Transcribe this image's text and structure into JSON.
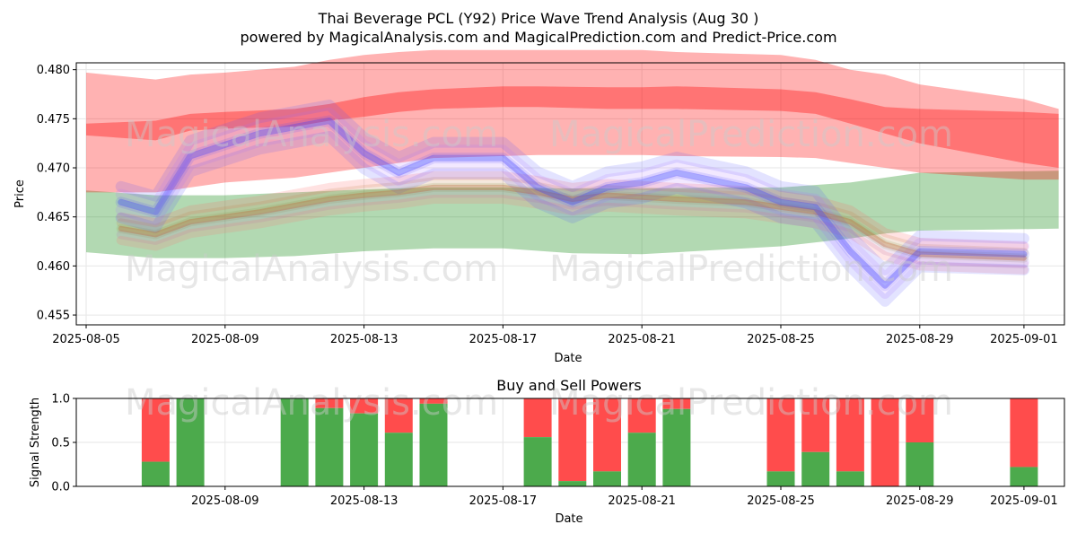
{
  "title": "Thai Beverage PCL (Y92) Price Wave Trend Analysis (Aug 30 )",
  "subtitle": "powered by MagicalAnalysis.com and MagicalPrediction.com and Predict-Price.com",
  "watermarks": [
    "MagicalAnalysis.com",
    "MagicalPrediction.com"
  ],
  "colors": {
    "red_band": "#ff0000",
    "green_band": "#008000",
    "blue_band": "#0000ff",
    "buy": "#4caa4c",
    "sell": "#ff4c4c"
  },
  "chart_data": [
    {
      "type": "area",
      "ylabel": "Price",
      "xlabel": "Date",
      "ylim": [
        0.454,
        0.4807
      ],
      "xlim": [
        "2025-08-05",
        "2025-09-02"
      ],
      "grid": true,
      "y_ticks": [
        "0.455",
        "0.460",
        "0.465",
        "0.470",
        "0.475",
        "0.480"
      ],
      "x_ticks": [
        "2025-08-05",
        "2025-08-09",
        "2025-08-13",
        "2025-08-17",
        "2025-08-21",
        "2025-08-25",
        "2025-08-29",
        "2025-09-01"
      ],
      "series": [
        {
          "color": "red",
          "x": [
            "2025-08-05",
            "2025-08-07",
            "2025-08-08",
            "2025-08-09",
            "2025-08-11",
            "2025-08-12",
            "2025-08-13",
            "2025-08-14",
            "2025-08-15",
            "2025-08-17",
            "2025-08-18",
            "2025-08-20",
            "2025-08-21",
            "2025-08-22",
            "2025-08-25",
            "2025-08-26",
            "2025-08-27",
            "2025-08-28",
            "2025-08-29",
            "2025-09-01",
            "2025-09-02"
          ],
          "outer_upper": [
            0.4797,
            0.479,
            0.4795,
            0.4797,
            0.4803,
            0.481,
            0.4815,
            0.4818,
            0.482,
            0.482,
            0.482,
            0.482,
            0.482,
            0.4818,
            0.4815,
            0.481,
            0.48,
            0.4795,
            0.4785,
            0.477,
            0.476
          ],
          "outer_lower": [
            0.4675,
            0.4675,
            0.468,
            0.4685,
            0.469,
            0.4695,
            0.47,
            0.4705,
            0.471,
            0.4712,
            0.4713,
            0.4713,
            0.4713,
            0.4712,
            0.4711,
            0.471,
            0.4705,
            0.47,
            0.4695,
            0.4688,
            0.4688
          ],
          "inner_upper": [
            0.4745,
            0.4748,
            0.4755,
            0.4757,
            0.476,
            0.4765,
            0.4772,
            0.4777,
            0.478,
            0.4783,
            0.4783,
            0.4782,
            0.4782,
            0.4783,
            0.478,
            0.4777,
            0.477,
            0.4762,
            0.476,
            0.4757,
            0.4755
          ],
          "inner_lower": [
            0.4733,
            0.4728,
            0.4738,
            0.474,
            0.4742,
            0.4748,
            0.4752,
            0.4757,
            0.476,
            0.4762,
            0.4762,
            0.476,
            0.476,
            0.476,
            0.4758,
            0.4755,
            0.4745,
            0.4735,
            0.4725,
            0.4705,
            0.47
          ]
        },
        {
          "color": "green",
          "x": [
            "2025-08-05",
            "2025-08-07",
            "2025-08-09",
            "2025-08-11",
            "2025-08-13",
            "2025-08-15",
            "2025-08-17",
            "2025-08-19",
            "2025-08-21",
            "2025-08-23",
            "2025-08-25",
            "2025-08-27",
            "2025-08-28",
            "2025-08-29",
            "2025-09-02"
          ],
          "outer_upper": [
            0.4677,
            0.4672,
            0.4672,
            0.4675,
            0.4678,
            0.468,
            0.468,
            0.4679,
            0.4679,
            0.468,
            0.468,
            0.4685,
            0.469,
            0.4695,
            0.4697
          ],
          "outer_lower": [
            0.4614,
            0.4608,
            0.4608,
            0.461,
            0.4615,
            0.4618,
            0.4618,
            0.4613,
            0.4612,
            0.4616,
            0.462,
            0.4628,
            0.4633,
            0.4636,
            0.4638
          ]
        },
        {
          "color": "blue",
          "x": [
            "2025-08-06",
            "2025-08-07",
            "2025-08-08",
            "2025-08-10",
            "2025-08-12",
            "2025-08-13",
            "2025-08-14",
            "2025-08-15",
            "2025-08-17",
            "2025-08-18",
            "2025-08-19",
            "2025-08-20",
            "2025-08-21",
            "2025-08-22",
            "2025-08-24",
            "2025-08-25",
            "2025-08-26",
            "2025-08-27",
            "2025-08-28",
            "2025-08-29",
            "2025-09-01"
          ],
          "y": [
            0.4665,
            0.4655,
            0.4712,
            0.4735,
            0.4748,
            0.4715,
            0.4695,
            0.471,
            0.471,
            0.468,
            0.4665,
            0.468,
            0.4685,
            0.4695,
            0.468,
            0.4665,
            0.466,
            0.4615,
            0.458,
            0.4615,
            0.4612
          ]
        },
        {
          "color": "mixed",
          "x": [
            "2025-08-06",
            "2025-08-07",
            "2025-08-08",
            "2025-08-10",
            "2025-08-12",
            "2025-08-13",
            "2025-08-14",
            "2025-08-15",
            "2025-08-17",
            "2025-08-18",
            "2025-08-19",
            "2025-08-20",
            "2025-08-21",
            "2025-08-22",
            "2025-08-24",
            "2025-08-25",
            "2025-08-26",
            "2025-08-27",
            "2025-08-28",
            "2025-08-29",
            "2025-09-01"
          ],
          "y": [
            0.4638,
            0.4632,
            0.4645,
            0.4655,
            0.4668,
            0.4672,
            0.4675,
            0.468,
            0.468,
            0.4675,
            0.4668,
            0.4672,
            0.467,
            0.4668,
            0.4665,
            0.466,
            0.4655,
            0.4645,
            0.4622,
            0.4612,
            0.4608
          ]
        }
      ]
    },
    {
      "type": "bar",
      "title": "Buy and Sell Powers",
      "ylabel": "Signal Strength",
      "xlabel": "Date",
      "ylim": [
        0,
        1
      ],
      "y_ticks": [
        "0.0",
        "0.5",
        "1.0"
      ],
      "x_ticks": [
        "2025-08-09",
        "2025-08-13",
        "2025-08-17",
        "2025-08-21",
        "2025-08-25",
        "2025-08-29",
        "2025-09-01"
      ],
      "grid": true,
      "bars": [
        {
          "date": "2025-08-07",
          "buy": 0.28
        },
        {
          "date": "2025-08-08",
          "buy": 1.0
        },
        {
          "date": "2025-08-11",
          "buy": 1.0
        },
        {
          "date": "2025-08-12",
          "buy": 0.89
        },
        {
          "date": "2025-08-13",
          "buy": 0.83
        },
        {
          "date": "2025-08-14",
          "buy": 0.61
        },
        {
          "date": "2025-08-15",
          "buy": 0.94
        },
        {
          "date": "2025-08-18",
          "buy": 0.56
        },
        {
          "date": "2025-08-19",
          "buy": 0.06
        },
        {
          "date": "2025-08-20",
          "buy": 0.17
        },
        {
          "date": "2025-08-21",
          "buy": 0.61
        },
        {
          "date": "2025-08-22",
          "buy": 0.88
        },
        {
          "date": "2025-08-25",
          "buy": 0.17
        },
        {
          "date": "2025-08-26",
          "buy": 0.39
        },
        {
          "date": "2025-08-27",
          "buy": 0.17
        },
        {
          "date": "2025-08-28",
          "buy": 0.0
        },
        {
          "date": "2025-08-29",
          "buy": 0.5
        },
        {
          "date": "2025-09-01",
          "buy": 0.22
        }
      ]
    }
  ]
}
